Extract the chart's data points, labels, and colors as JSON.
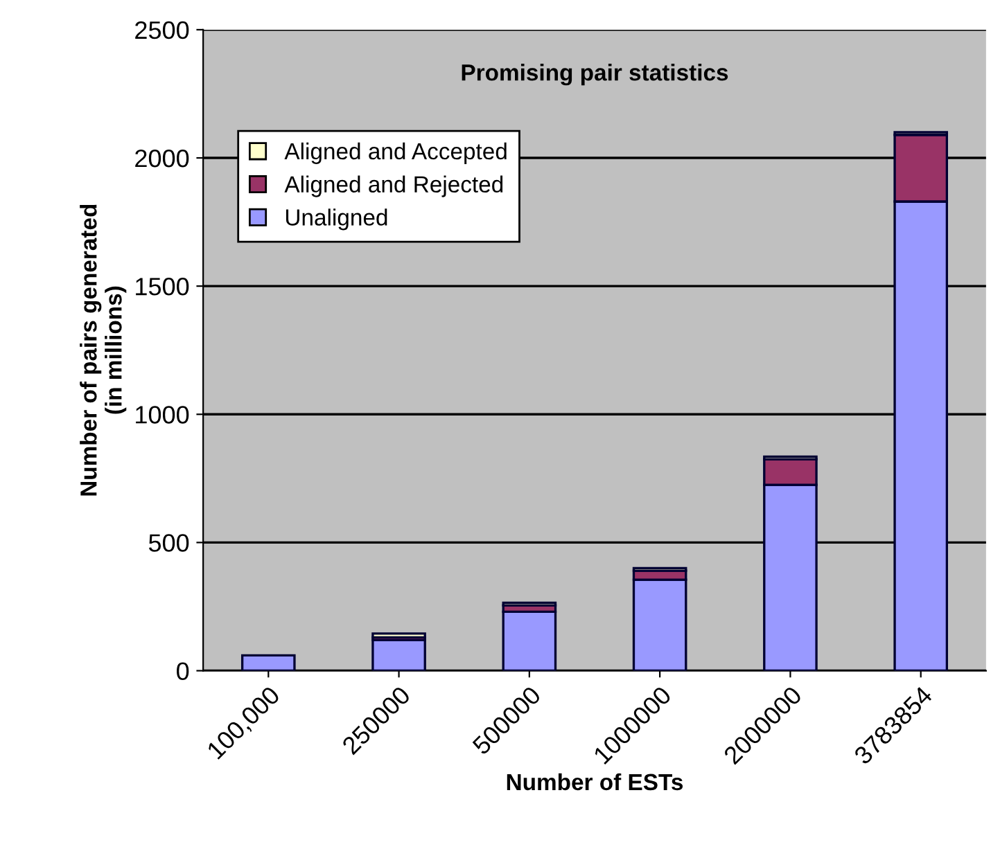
{
  "chart_data": {
    "type": "bar",
    "stacked": true,
    "title": "Promising pair statistics",
    "xlabel": "Number of ESTs",
    "ylabel": "Number of pairs generated\n(in millions)",
    "categories": [
      "100,000",
      "250000",
      "500000",
      "1000000",
      "2000000",
      "3783854"
    ],
    "series": [
      {
        "name": "Unaligned",
        "color": "#9999ff",
        "values": [
          60,
          120,
          230,
          355,
          725,
          1830
        ]
      },
      {
        "name": "Aligned and Rejected",
        "color": "#993366",
        "values": [
          null,
          10,
          25,
          35,
          100,
          260
        ]
      },
      {
        "name": "Aligned and Accepted",
        "color": "#ffffcc",
        "values": [
          null,
          15,
          10,
          10,
          10,
          10
        ]
      }
    ],
    "ylim": [
      0,
      2500
    ],
    "yticks": [
      0,
      500,
      1000,
      1500,
      2000,
      2500
    ],
    "grid": "y",
    "legend": "top left"
  }
}
